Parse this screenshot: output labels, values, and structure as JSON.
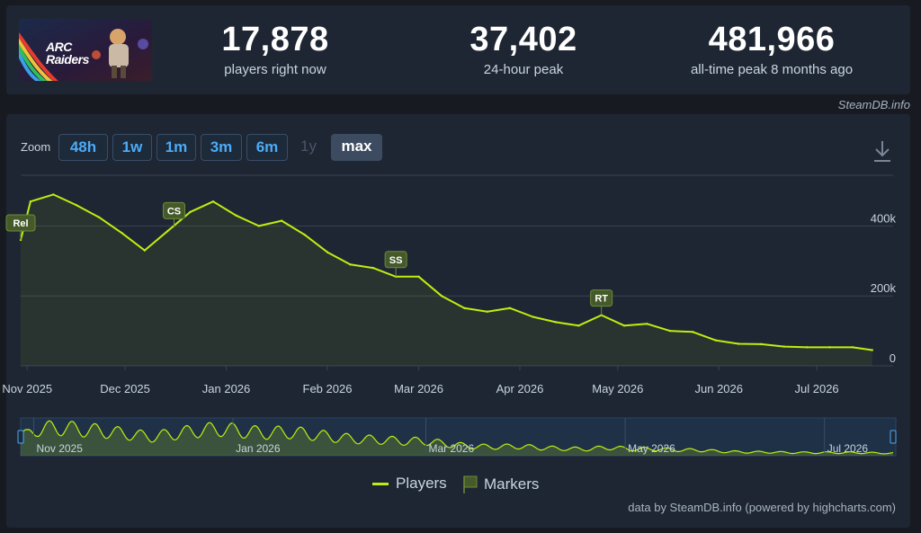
{
  "colors": {
    "line": "#beee11",
    "marker_fill": "#455a2a",
    "grid": "#3a4250",
    "axis_text": "#c7d5e0",
    "navigator_mask": "#1f3b55"
  },
  "header": {
    "logo_text": "ARC Raiders",
    "stats": [
      {
        "value": "17,878",
        "label": "players right now"
      },
      {
        "value": "37,402",
        "label": "24-hour peak"
      },
      {
        "value": "481,966",
        "label": "all-time peak 8 months ago"
      }
    ],
    "credit": "SteamDB.info"
  },
  "zoom": {
    "label": "Zoom",
    "buttons": [
      {
        "label": "48h",
        "state": "enabled"
      },
      {
        "label": "1w",
        "state": "enabled"
      },
      {
        "label": "1m",
        "state": "enabled"
      },
      {
        "label": "3m",
        "state": "enabled"
      },
      {
        "label": "6m",
        "state": "enabled"
      },
      {
        "label": "1y",
        "state": "disabled"
      },
      {
        "label": "max",
        "state": "active"
      }
    ],
    "download_icon": "download-icon"
  },
  "chart_data": {
    "type": "line",
    "series": [
      {
        "name": "Players"
      }
    ],
    "x": [
      "2025-10-30",
      "2025-11-02",
      "2025-11-09",
      "2025-11-16",
      "2025-11-23",
      "2025-11-30",
      "2025-12-07",
      "2025-12-14",
      "2025-12-21",
      "2025-12-28",
      "2026-01-04",
      "2026-01-11",
      "2026-01-18",
      "2026-01-25",
      "2026-02-01",
      "2026-02-08",
      "2026-02-15",
      "2026-02-22",
      "2026-03-01",
      "2026-03-08",
      "2026-03-15",
      "2026-03-22",
      "2026-03-29",
      "2026-04-05",
      "2026-04-12",
      "2026-04-19",
      "2026-04-26",
      "2026-05-03",
      "2026-05-10",
      "2026-05-17",
      "2026-05-24",
      "2026-05-31",
      "2026-06-07",
      "2026-06-14",
      "2026-06-21",
      "2026-06-28",
      "2026-07-05",
      "2026-07-12",
      "2026-07-18"
    ],
    "y": [
      360000,
      470000,
      490000,
      460000,
      425000,
      380000,
      330000,
      385000,
      440000,
      470000,
      430000,
      400000,
      415000,
      375000,
      325000,
      290000,
      280000,
      255000,
      255000,
      200000,
      165000,
      155000,
      165000,
      140000,
      125000,
      115000,
      145000,
      115000,
      120000,
      100000,
      97000,
      73000,
      63000,
      62000,
      55000,
      53000,
      53000,
      53000,
      45000
    ],
    "ylim": [
      0,
      545000
    ],
    "yticks": [
      {
        "value": 400000,
        "label": "400k"
      },
      {
        "value": 200000,
        "label": "200k"
      },
      {
        "value": 0,
        "label": "0"
      }
    ],
    "xticks": [
      {
        "date": "2025-11-01",
        "label": "Nov 2025"
      },
      {
        "date": "2025-12-01",
        "label": "Dec 2025"
      },
      {
        "date": "2026-01-01",
        "label": "Jan 2026"
      },
      {
        "date": "2026-02-01",
        "label": "Feb 2026"
      },
      {
        "date": "2026-03-01",
        "label": "Mar 2026"
      },
      {
        "date": "2026-04-01",
        "label": "Apr 2026"
      },
      {
        "date": "2026-05-01",
        "label": "May 2026"
      },
      {
        "date": "2026-06-01",
        "label": "Jun 2026"
      },
      {
        "date": "2026-07-01",
        "label": "Jul 2026"
      }
    ],
    "markers": [
      {
        "label": "Rel",
        "date": "2025-10-30",
        "value": 360000
      },
      {
        "label": "CS",
        "date": "2025-12-16",
        "value": 395000
      },
      {
        "label": "SS",
        "date": "2026-02-22",
        "value": 255000
      },
      {
        "label": "RT",
        "date": "2026-04-26",
        "value": 145000
      }
    ],
    "navigator": {
      "labels": [
        "Nov 2025",
        "Jan 2026",
        "Mar 2026",
        "May 2026",
        "Jul 2026"
      ]
    },
    "legend": [
      {
        "name": "Players",
        "kind": "line"
      },
      {
        "name": "Markers",
        "kind": "flag"
      }
    ],
    "legend_position": "bottom-center",
    "grid": true,
    "credit": "data by SteamDB.info (powered by highcharts.com)"
  }
}
